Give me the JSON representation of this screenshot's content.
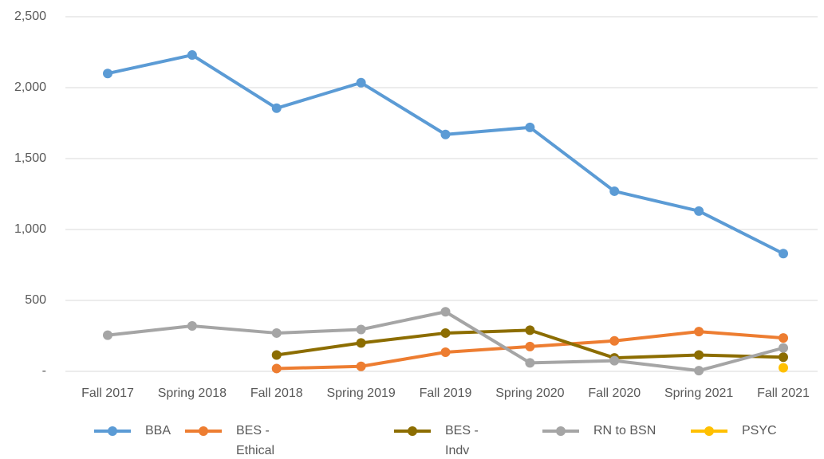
{
  "chart_data": {
    "type": "line",
    "categories": [
      "Fall 2017",
      "Spring 2018",
      "Fall 2018",
      "Spring 2019",
      "Fall 2019",
      "Spring 2020",
      "Fall 2020",
      "Spring 2021",
      "Fall 2021"
    ],
    "series": [
      {
        "name": "BBA",
        "color": "#5b9bd5",
        "values": [
          2100,
          2230,
          1855,
          2035,
          1670,
          1720,
          1270,
          1130,
          830
        ]
      },
      {
        "name": "BES - Ethical Leader",
        "color": "#ed7d31",
        "values": [
          null,
          null,
          20,
          35,
          135,
          175,
          215,
          280,
          235
        ]
      },
      {
        "name": "BES - Indv Program",
        "color": "#8c6d00",
        "values": [
          null,
          null,
          115,
          200,
          270,
          290,
          95,
          115,
          100
        ]
      },
      {
        "name": "RN to BSN",
        "color": "#a5a5a5",
        "values": [
          255,
          320,
          270,
          295,
          420,
          60,
          75,
          5,
          165
        ]
      },
      {
        "name": "PSYC",
        "color": "#ffc000",
        "values": [
          null,
          null,
          null,
          null,
          null,
          null,
          null,
          null,
          25
        ]
      }
    ],
    "ylim": [
      0,
      2500
    ],
    "yticks": [
      {
        "value": 0,
        "label": "-"
      },
      500,
      {
        "value": 1000,
        "label": "1,000"
      },
      {
        "value": 1500,
        "label": "1,500"
      },
      {
        "value": 2000,
        "label": "2,000"
      },
      {
        "value": 2500,
        "label": "2,500"
      }
    ],
    "grid": true,
    "legend": "bottom"
  }
}
